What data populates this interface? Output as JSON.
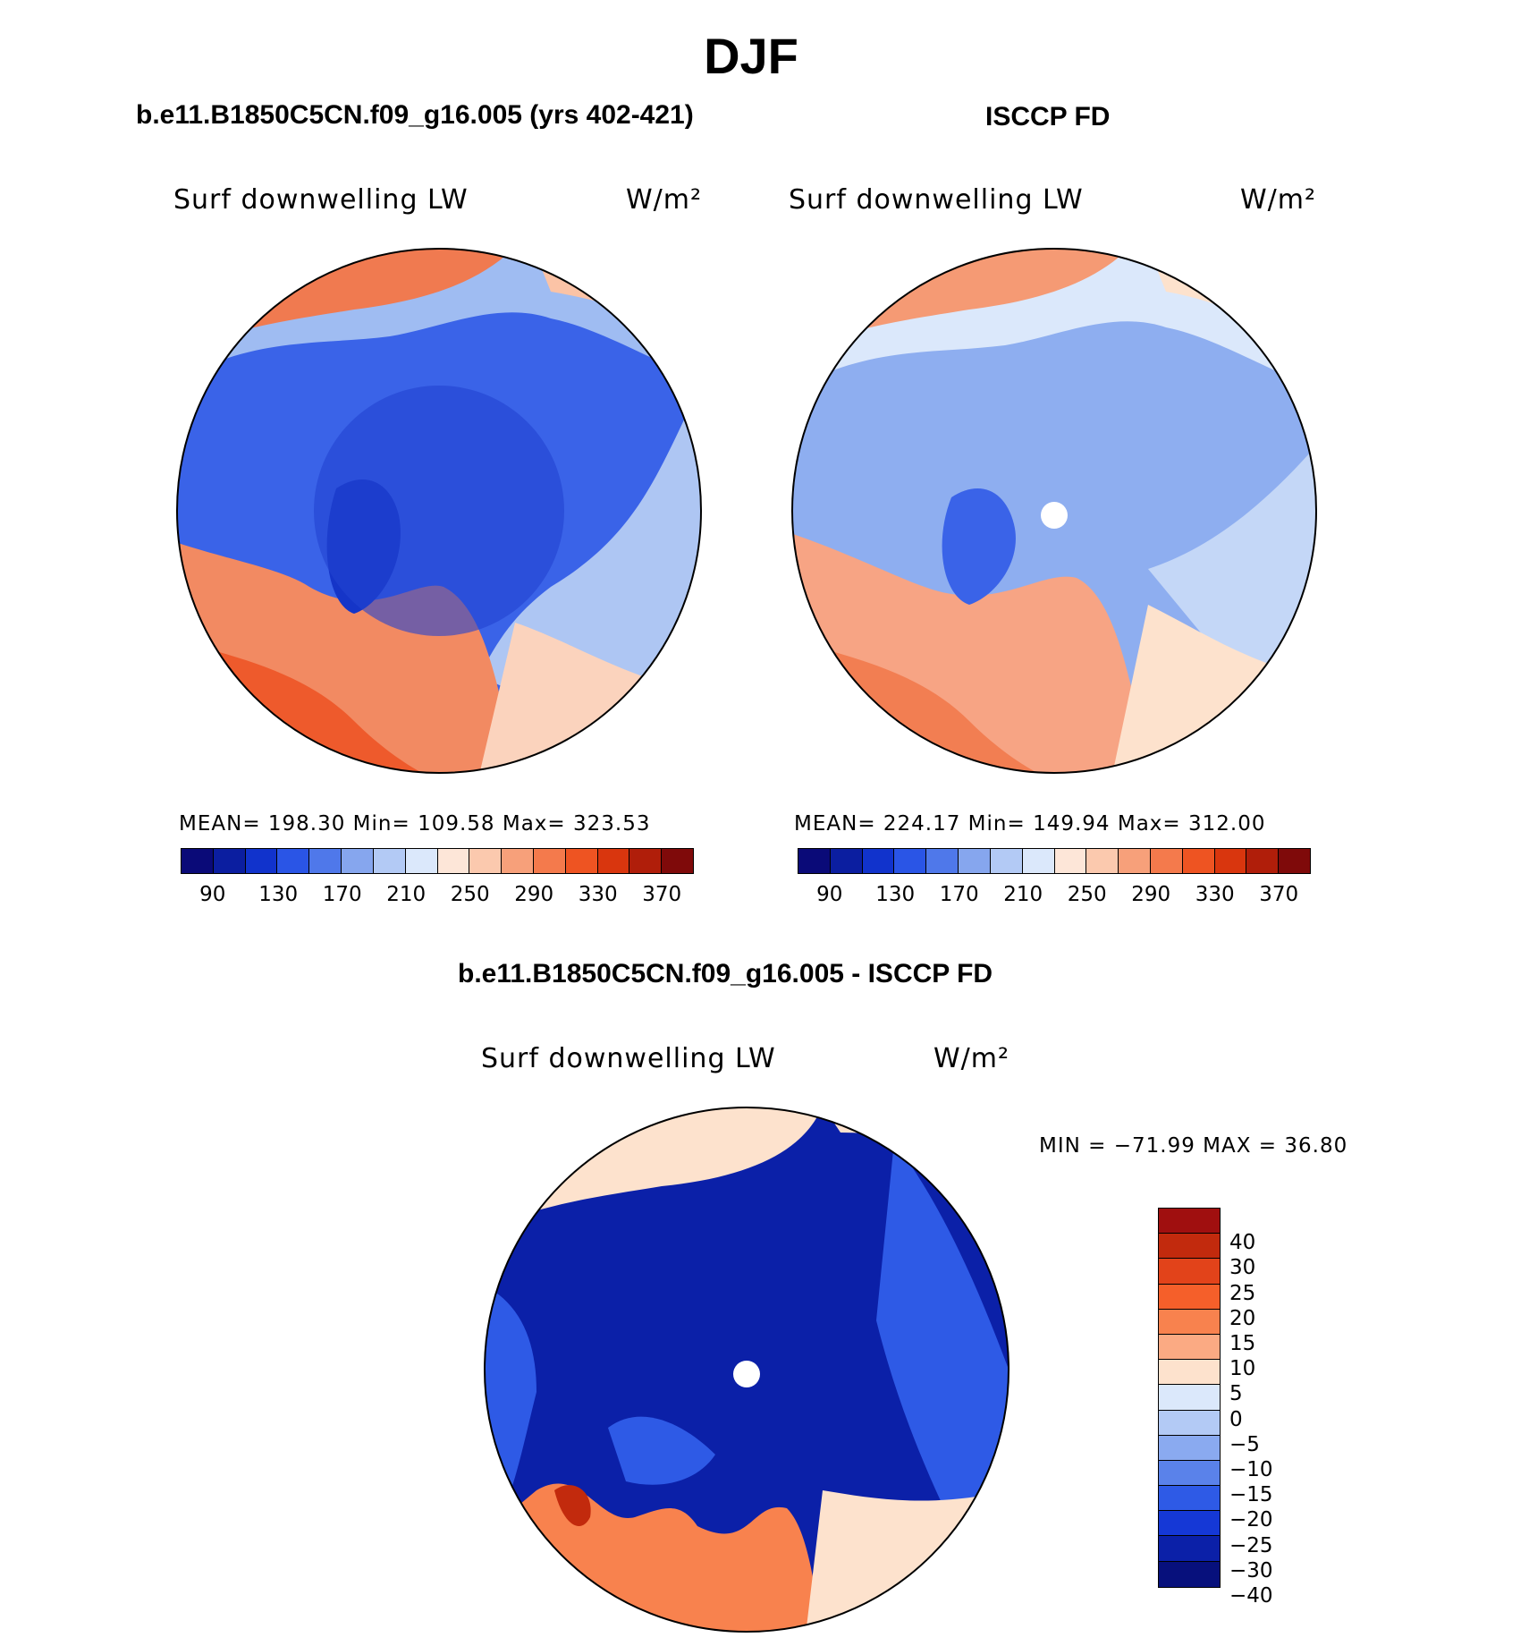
{
  "figure": {
    "season": "DJF",
    "panel_left_title": "b.e11.B1850C5CN.f09_g16.005 (yrs 402-421)",
    "panel_right_title": "ISCCP FD",
    "panel_diff_title": "b.e11.B1850C5CN.f09_g16.005 - ISCCP FD"
  },
  "panels": {
    "left": {
      "variable": "Surf downwelling LW",
      "units": "W/m²",
      "stats": "MEAN=  198.30   Min=  109.58   Max=  323.53"
    },
    "right": {
      "variable": "Surf downwelling LW",
      "units": "W/m²",
      "stats": "MEAN=  224.17   Min=  149.94   Max=  312.00"
    },
    "diff": {
      "variable": "Surf downwelling LW",
      "units": "W/m²",
      "stats": "MIN = −71.99 MAX =   36.80"
    }
  },
  "colorbar_main": {
    "colors": [
      "#0a0a78",
      "#0b1ea0",
      "#1133cc",
      "#2a55e6",
      "#4f78ea",
      "#86a6ee",
      "#b3caf5",
      "#dbe8fb",
      "#fde6d8",
      "#fbc9ae",
      "#f7a07a",
      "#f47a4c",
      "#ee5422",
      "#d9360e",
      "#b01e0a",
      "#7f0a0a"
    ],
    "labels": [
      "90",
      "130",
      "170",
      "210",
      "250",
      "290",
      "330",
      "370"
    ]
  },
  "colorbar_diff": {
    "colors": [
      "#a00f0f",
      "#c22a0d",
      "#e2431a",
      "#f55f2a",
      "#f8824e",
      "#fbaa83",
      "#fde2cd",
      "#dbe8fb",
      "#b3caf5",
      "#8aaaf0",
      "#5a82ea",
      "#2e5ae6",
      "#1538d6",
      "#0b20a8",
      "#07107c"
    ],
    "labels": [
      "40",
      "30",
      "25",
      "20",
      "15",
      "10",
      "5",
      "0",
      "−5",
      "−10",
      "−15",
      "−20",
      "−25",
      "−30",
      "−40"
    ]
  }
}
